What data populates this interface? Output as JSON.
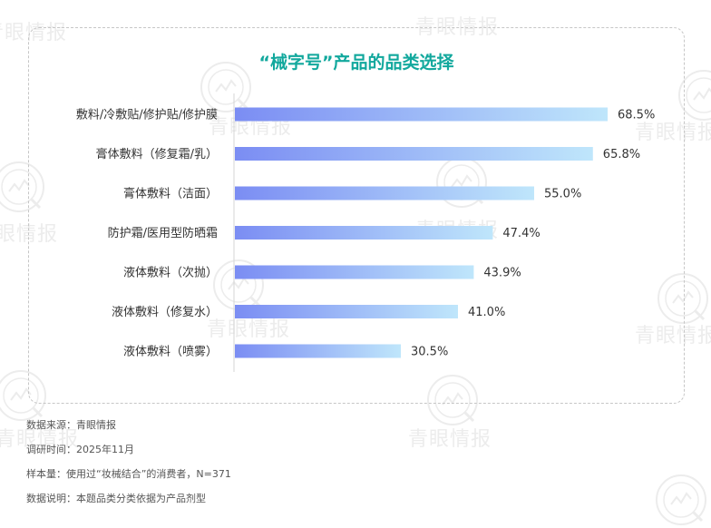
{
  "watermark": {
    "text": "青眼情报",
    "color": "#ececec"
  },
  "chart_data": {
    "type": "bar",
    "orientation": "horizontal",
    "title": "“械字号”产品的品类选择",
    "categories": [
      "敷料/冷敷贴/修护贴/修护膜",
      "膏体敷料（修复霜/乳）",
      "膏体敷料（洁面）",
      "防护霜/医用型防晒霜",
      "液体敷料（次抛）",
      "液体敷料（修复水）",
      "液体敷料（喷雾）"
    ],
    "values": [
      68.5,
      65.8,
      55.0,
      47.4,
      43.9,
      41.0,
      30.5
    ],
    "value_labels": [
      "68.5%",
      "65.8%",
      "55.0%",
      "47.4%",
      "43.9%",
      "41.0%",
      "30.5%"
    ],
    "unit": "%",
    "xlim": [
      0,
      100
    ],
    "grid": false,
    "legend": "none",
    "colors": {
      "bar_start": "#7b8df3",
      "bar_end": "#bfe6fb",
      "title": "#12a89d",
      "axis": "#d5d5d5"
    }
  },
  "notes": {
    "source": "数据来源：青眼情报",
    "survey_time": "调研时间：2025年11月",
    "sample": "样本量：使用过“妆械结合”的消费者，N=371",
    "explanation": "数据说明：本题品类分类依据为产品剂型"
  }
}
